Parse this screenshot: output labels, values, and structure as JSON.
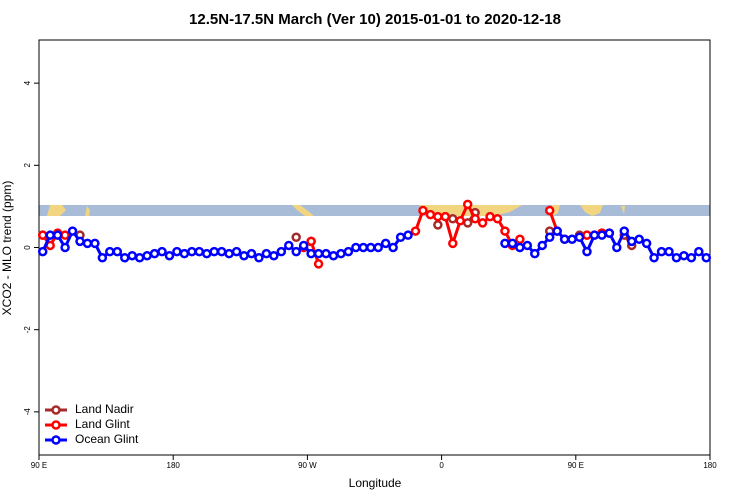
{
  "chart_data": {
    "type": "line",
    "title": "12.5N-17.5N March (Ver 10)   2015-01-01 to 2020-12-18",
    "x_label": "Longitude",
    "y_label": "XCO2 - MLO trend (ppm)",
    "xlim": [
      90,
      540
    ],
    "ylim": [
      -5.05,
      5.05
    ],
    "xticks": [
      {
        "value": 90,
        "label": "90 E"
      },
      180,
      {
        "value": 270,
        "label": "90 W"
      },
      {
        "value": 360,
        "label": "0"
      },
      {
        "value": 450,
        "label": "90 E"
      },
      {
        "value": 540,
        "label": "180"
      }
    ],
    "yticks": [
      -4,
      -2,
      0,
      2,
      4
    ],
    "legend": "bottom-left",
    "x": [
      92.5,
      97.5,
      102.5,
      107.5,
      112.5,
      117.5,
      122.5,
      127.5,
      132.5,
      137.5,
      142.5,
      147.5,
      152.5,
      157.5,
      162.5,
      167.5,
      172.5,
      177.5,
      182.5,
      187.5,
      192.5,
      197.5,
      202.5,
      207.5,
      212.5,
      217.5,
      222.5,
      227.5,
      232.5,
      237.5,
      242.5,
      247.5,
      252.5,
      257.5,
      262.5,
      267.5,
      272.5,
      277.5,
      282.5,
      287.5,
      292.5,
      297.5,
      302.5,
      307.5,
      312.5,
      317.5,
      322.5,
      327.5,
      332.5,
      337.5,
      342.5,
      347.5,
      352.5,
      357.5,
      362.5,
      367.5,
      372.5,
      377.5,
      382.5,
      387.5,
      392.5,
      397.5,
      402.5,
      407.5,
      412.5,
      417.5,
      422.5,
      427.5,
      432.5,
      437.5,
      442.5,
      447.5,
      452.5,
      457.5,
      462.5,
      467.5,
      472.5,
      477.5,
      482.5,
      487.5,
      492.5,
      497.5,
      502.5,
      507.5,
      512.5,
      517.5,
      522.5,
      527.5,
      532.5,
      537.5
    ],
    "series": [
      {
        "name": "Land Nadir",
        "color": "#a52a2a",
        "values": [
          0.3,
          null,
          null,
          null,
          null,
          0.3,
          null,
          null,
          null,
          null,
          null,
          null,
          null,
          null,
          null,
          null,
          null,
          null,
          null,
          null,
          null,
          null,
          null,
          null,
          null,
          null,
          null,
          null,
          null,
          null,
          null,
          null,
          null,
          null,
          0.25,
          null,
          0.15,
          null,
          null,
          null,
          null,
          null,
          null,
          null,
          null,
          null,
          null,
          null,
          null,
          null,
          null,
          null,
          null,
          0.55,
          null,
          0.7,
          null,
          0.6,
          0.85,
          null,
          null,
          null,
          null,
          null,
          null,
          null,
          null,
          null,
          0.4,
          null,
          null,
          null,
          0.3,
          0.3,
          null,
          0.35,
          null,
          null,
          0.3,
          0.05,
          null,
          null,
          null,
          null,
          null,
          null,
          null,
          null,
          null,
          null
        ]
      },
      {
        "name": "Land Glint",
        "color": "#ff0000",
        "values": [
          0.3,
          0.05,
          0.35,
          0.3,
          null,
          null,
          null,
          null,
          null,
          null,
          null,
          null,
          null,
          null,
          null,
          null,
          null,
          null,
          null,
          null,
          null,
          null,
          null,
          null,
          null,
          null,
          null,
          null,
          null,
          null,
          null,
          null,
          null,
          null,
          null,
          0.0,
          0.15,
          -0.4,
          null,
          null,
          null,
          null,
          null,
          null,
          null,
          null,
          null,
          null,
          null,
          null,
          0.4,
          0.9,
          0.8,
          0.75,
          0.75,
          0.1,
          0.65,
          1.05,
          0.7,
          0.6,
          0.75,
          0.7,
          0.4,
          0.05,
          0.2,
          null,
          null,
          null,
          0.9,
          0.4,
          0.2,
          null,
          null,
          0.3,
          0.3,
          0.35,
          0.35,
          null,
          null,
          null,
          null,
          null,
          null,
          null,
          null,
          null,
          null,
          null,
          null,
          null
        ]
      },
      {
        "name": "Ocean Glint",
        "color": "#0000ff",
        "values": [
          -0.1,
          0.3,
          0.3,
          0.0,
          0.4,
          0.15,
          0.1,
          0.1,
          -0.25,
          -0.1,
          -0.1,
          -0.25,
          -0.2,
          -0.25,
          -0.2,
          -0.15,
          -0.1,
          -0.2,
          -0.1,
          -0.15,
          -0.1,
          -0.1,
          -0.15,
          -0.1,
          -0.1,
          -0.15,
          -0.1,
          -0.2,
          -0.15,
          -0.25,
          -0.15,
          -0.2,
          -0.1,
          0.05,
          -0.1,
          0.05,
          -0.15,
          -0.15,
          -0.15,
          -0.2,
          -0.15,
          -0.1,
          0.0,
          0.0,
          0.0,
          0.0,
          0.1,
          0.0,
          0.25,
          0.3,
          null,
          null,
          null,
          null,
          null,
          null,
          null,
          null,
          null,
          null,
          null,
          null,
          0.1,
          0.1,
          0.0,
          0.05,
          -0.15,
          0.05,
          0.25,
          0.4,
          0.2,
          0.2,
          0.25,
          -0.1,
          0.3,
          0.3,
          0.35,
          0.0,
          0.4,
          0.15,
          0.2,
          0.1,
          -0.25,
          -0.1,
          -0.1,
          -0.25,
          -0.2,
          -0.25,
          -0.1,
          -0.25
        ]
      }
    ]
  }
}
